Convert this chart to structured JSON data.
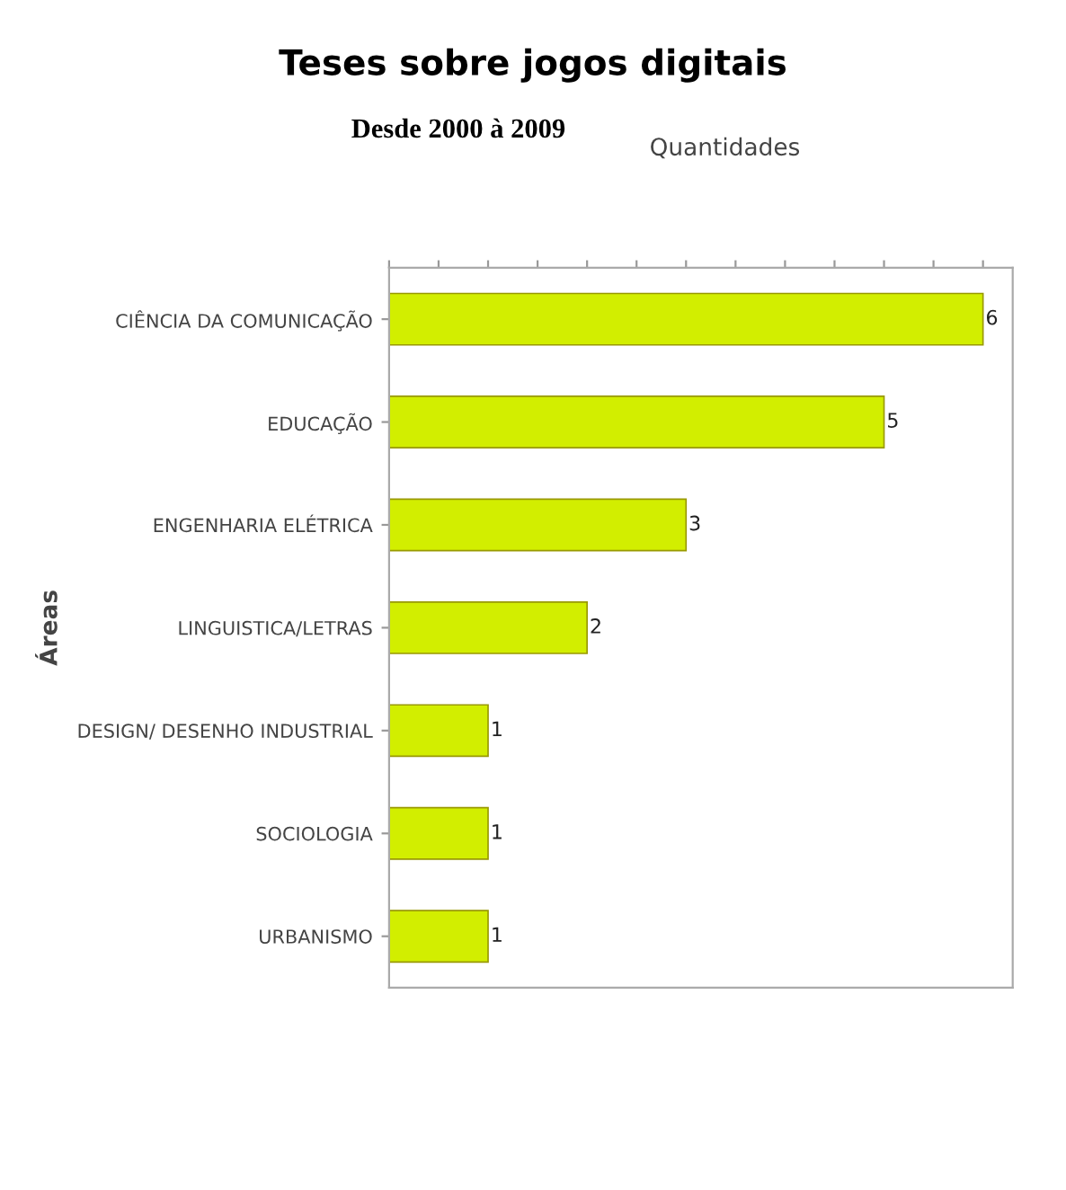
{
  "chart_data": {
    "type": "bar",
    "orientation": "horizontal",
    "title": "Teses sobre jogos digitais",
    "subtitle": "Desde 2000 à 2009",
    "xlabel": "Quantidades",
    "ylabel": "Áreas",
    "categories": [
      "CIÊNCIA DA COMUNICAÇÃO",
      "EDUCAÇÃO",
      "ENGENHARIA ELÉTRICA",
      "LINGUISTICA/LETRAS",
      "DESIGN/ DESENHO INDUSTRIAL",
      "SOCIOLOGIA",
      "URBANISMO"
    ],
    "values": [
      6,
      5,
      3,
      2,
      1,
      1,
      1
    ],
    "color": "#d2ee00",
    "data_labels": true,
    "tick_labels": "y",
    "xlim": [
      0,
      6.3
    ],
    "xticks": [
      {
        "value": 0,
        "label": null
      },
      {
        "value": 0.5,
        "label": null
      },
      {
        "value": 1,
        "label": null
      },
      {
        "value": 1.5,
        "label": null
      },
      {
        "value": 2,
        "label": null
      },
      {
        "value": 2.5,
        "label": null
      },
      {
        "value": 3,
        "label": null
      },
      {
        "value": 3.5,
        "label": null
      },
      {
        "value": 4,
        "label": null
      },
      {
        "value": 4.5,
        "label": null
      },
      {
        "value": 5,
        "label": null
      },
      {
        "value": 5.5,
        "label": null
      },
      {
        "value": 6,
        "label": null
      }
    ],
    "grid": false
  }
}
